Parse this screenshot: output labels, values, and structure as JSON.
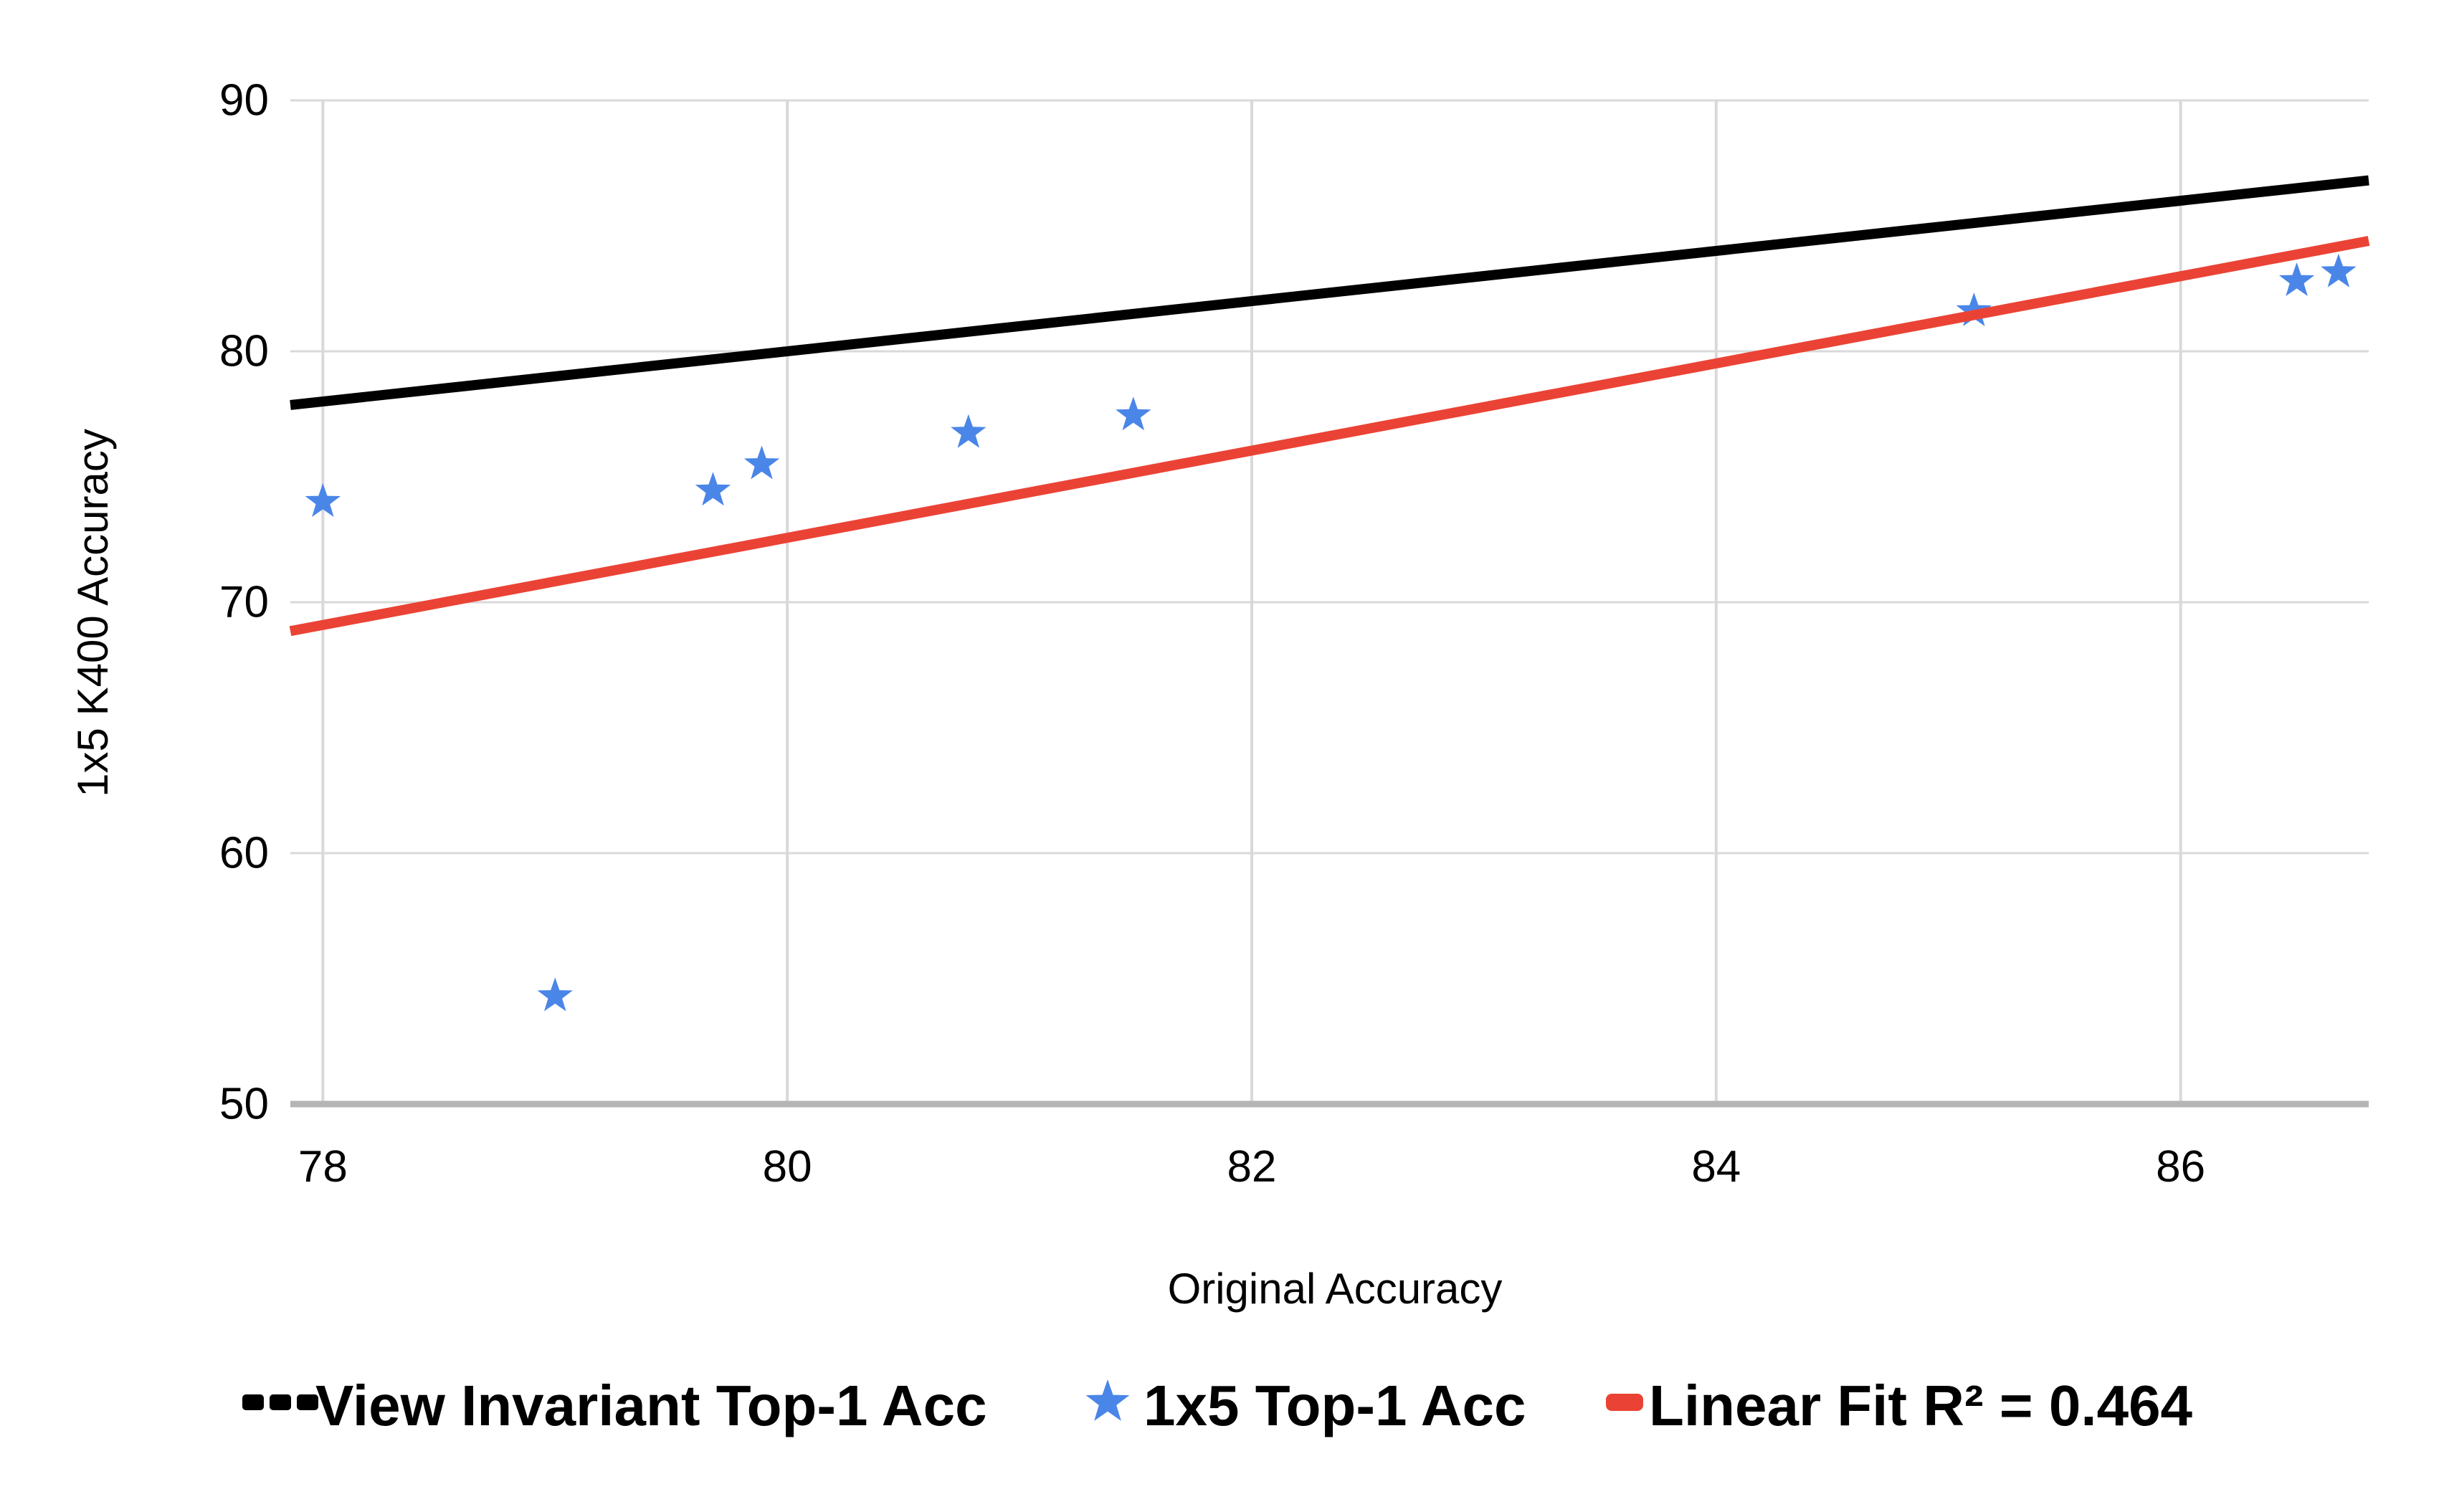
{
  "chart_data": {
    "type": "scatter",
    "title": "",
    "xlabel": "Original Accuracy",
    "ylabel": "1x5 K400 Accuracy",
    "x_ticks": [
      78,
      80,
      82,
      84,
      86
    ],
    "y_ticks": [
      50,
      60,
      70,
      80,
      90
    ],
    "x_range": [
      77.86,
      86.81
    ],
    "y_range": [
      50,
      90
    ],
    "grid": true,
    "legend_position": "bottom",
    "colors": {
      "background": "#ffffff",
      "gridline": "#d9d9d9",
      "axis_line": "#b5b5b5",
      "text": "#000000",
      "identity_line": "#000000",
      "scatter_star": "#4a86e8",
      "linear_fit": "#ea4335"
    },
    "series": [
      {
        "name": "View Invariant Top-1 Acc",
        "type": "line",
        "marker": "dashes",
        "color": "#000000",
        "points": [
          [
            77.86,
            77.86
          ],
          [
            86.81,
            86.81
          ]
        ]
      },
      {
        "name": "1x5 Top-1 Acc",
        "type": "scatter",
        "marker": "star",
        "color": "#4a86e8",
        "points": [
          [
            78.0,
            74.0
          ],
          [
            79.0,
            54.3
          ],
          [
            79.68,
            74.45
          ],
          [
            79.89,
            75.5
          ],
          [
            80.78,
            76.75
          ],
          [
            81.49,
            77.45
          ],
          [
            85.11,
            81.6
          ],
          [
            86.5,
            82.8
          ],
          [
            86.68,
            83.15
          ]
        ]
      },
      {
        "name": "Linear Fit R² = 0.464",
        "type": "line",
        "marker": "dash",
        "color": "#ea4335",
        "points": [
          [
            77.86,
            68.85
          ],
          [
            86.81,
            84.4
          ]
        ]
      }
    ]
  }
}
